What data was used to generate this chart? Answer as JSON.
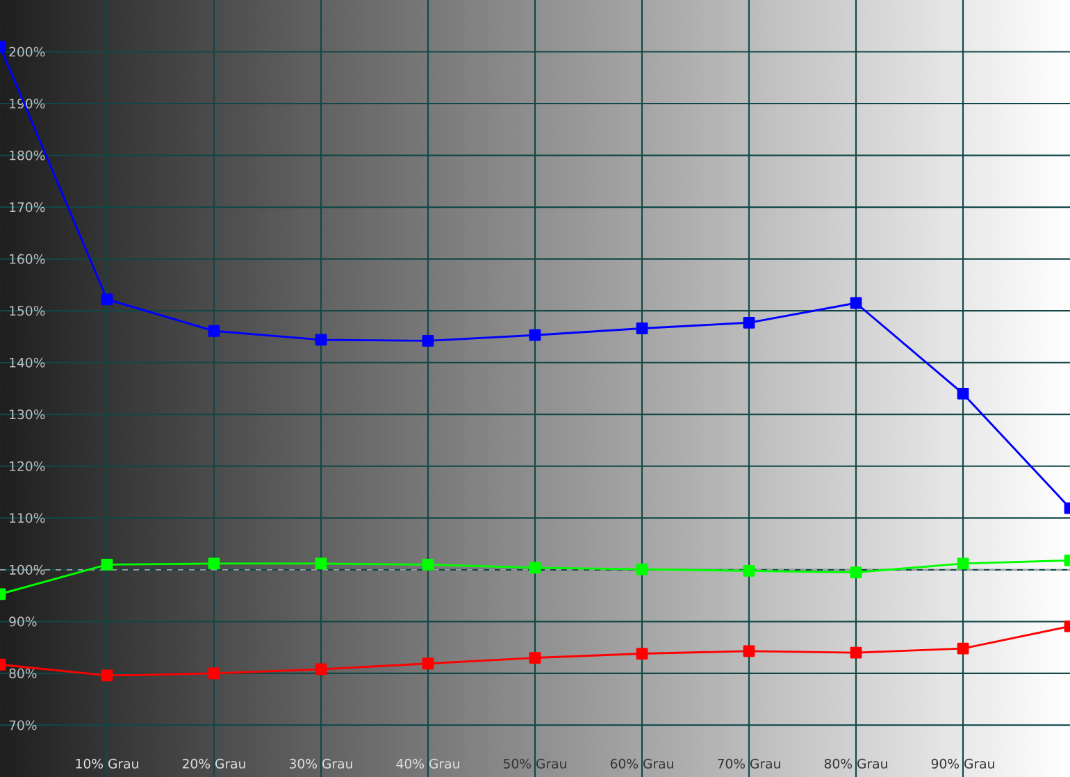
{
  "chart_data": {
    "type": "line",
    "x": [
      0,
      10,
      20,
      30,
      40,
      50,
      60,
      70,
      80,
      90,
      100
    ],
    "series": [
      {
        "color": "#0000ff",
        "values": [
          201,
          152.2,
          146.1,
          144.4,
          144.2,
          145.3,
          146.6,
          147.7,
          151.5,
          134.0,
          111.9
        ]
      },
      {
        "color": "#00ff00",
        "values": [
          95.3,
          101,
          101.2,
          101.2,
          101,
          100.4,
          100.1,
          99.8,
          99.5,
          101.2,
          101.8
        ]
      },
      {
        "color": "#ff0000",
        "values": [
          81.7,
          79.6,
          80,
          80.8,
          81.9,
          83,
          83.8,
          84.3,
          84,
          84.8,
          89.1
        ]
      }
    ],
    "xlim": [
      0,
      100
    ],
    "ylim": [
      60,
      210
    ],
    "xticks": [
      {
        "value": 10,
        "label": "10% Grau"
      },
      {
        "value": 20,
        "label": "20% Grau"
      },
      {
        "value": 30,
        "label": "30% Grau"
      },
      {
        "value": 40,
        "label": "40% Grau"
      },
      {
        "value": 50,
        "label": "50% Grau"
      },
      {
        "value": 60,
        "label": "60% Grau"
      },
      {
        "value": 70,
        "label": "70% Grau"
      },
      {
        "value": 80,
        "label": "80% Grau"
      },
      {
        "value": 90,
        "label": "90% Grau"
      }
    ],
    "yticks": [
      {
        "value": 70,
        "label": "70%"
      },
      {
        "value": 80,
        "label": "80%"
      },
      {
        "value": 90,
        "label": "90%"
      },
      {
        "value": 100,
        "label": "100%"
      },
      {
        "value": 110,
        "label": "110%"
      },
      {
        "value": 120,
        "label": "120%"
      },
      {
        "value": 130,
        "label": "130%"
      },
      {
        "value": 140,
        "label": "140%"
      },
      {
        "value": 150,
        "label": "150%"
      },
      {
        "value": 160,
        "label": "160%"
      },
      {
        "value": 170,
        "label": "170%"
      },
      {
        "value": 180,
        "label": "180%"
      },
      {
        "value": 190,
        "label": "190%"
      },
      {
        "value": 200,
        "label": "200%"
      }
    ],
    "ref_lines": [
      {
        "axis": "y",
        "value": 100,
        "color": "#a0a0a0",
        "line_style": "dashed"
      }
    ],
    "grid": true,
    "marker": "square",
    "line_style": "solid"
  }
}
